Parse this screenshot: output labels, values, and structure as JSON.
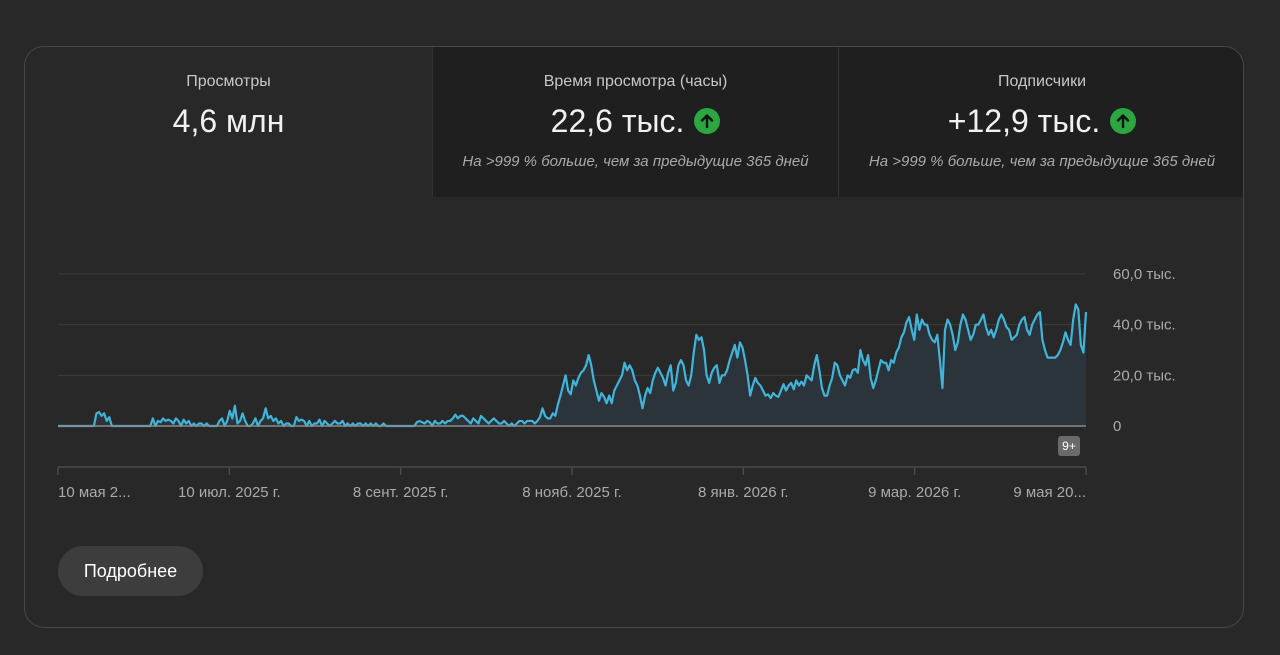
{
  "tabs": [
    {
      "label": "Просмотры",
      "value": "4,6 млн",
      "note": "",
      "trend": "none"
    },
    {
      "label": "Время просмотра (часы)",
      "value": "22,6 тыс.",
      "note": "На >999 % больше, чем за предыдущие 365 дней",
      "trend": "up"
    },
    {
      "label": "Подписчики",
      "value": "+12,9 тыс.",
      "note": "На >999 % больше, чем за предыдущие 365 дней",
      "trend": "up"
    }
  ],
  "colors": {
    "accent_line": "#41b4d9",
    "area_fill": "#2a343a",
    "trend_up": "#2ba640",
    "grid": "#3c3c3c",
    "baseline": "#8a8a8a"
  },
  "chart_data": {
    "type": "area",
    "y_ticks": [
      "0",
      "20,0 тыс.",
      "40,0 тыс.",
      "60,0 тыс."
    ],
    "ylim": [
      0,
      60000
    ],
    "x_tick_labels": [
      "10 мая 2...",
      "10 июл. 2025 г.",
      "8 сент. 2025 г.",
      "8 нояб. 2025 г.",
      "8 янв. 2026 г.",
      "9 мар. 2026 г.",
      "9 мая 20..."
    ],
    "x_range": [
      "2025-05-10",
      "2026-05-09"
    ],
    "annotation": "9+",
    "grid": true,
    "series": [
      {
        "values": [
          0,
          0,
          0,
          0,
          0,
          0,
          0,
          0,
          0,
          0,
          0,
          0,
          0,
          0,
          0,
          5000,
          5500,
          4000,
          5000,
          2000,
          3500,
          0,
          0,
          0,
          0,
          0,
          0,
          0,
          0,
          0,
          0,
          0,
          0,
          0,
          0,
          0,
          0,
          3000,
          0,
          2000,
          1500,
          3000,
          2000,
          2500,
          2000,
          1000,
          3000,
          2000,
          0,
          2500,
          1000,
          2000,
          0,
          1000,
          0,
          1000,
          1000,
          0,
          1000,
          0,
          0,
          0,
          0,
          2000,
          3000,
          0,
          2000,
          6000,
          3000,
          8000,
          1000,
          2000,
          5000,
          2000,
          0,
          0,
          1000,
          3000,
          0,
          2000,
          3000,
          7000,
          3000,
          4000,
          2000,
          3000,
          1000,
          2000,
          0,
          1000,
          1000,
          0,
          0,
          3500,
          2000,
          2500,
          2000,
          0,
          2000,
          0,
          1000,
          1000,
          2500,
          0,
          2000,
          1000,
          0,
          1000,
          2000,
          1000,
          1000,
          2000,
          0,
          1000,
          0,
          1000,
          0,
          1000,
          1000,
          0,
          1000,
          0,
          1000,
          0,
          1000,
          0,
          0,
          1000,
          0,
          0,
          0,
          0,
          0,
          0,
          0,
          0,
          0,
          0,
          0,
          0,
          1500,
          2000,
          1500,
          1000,
          2000,
          1500,
          0,
          2000,
          1000,
          1000,
          2000,
          1000,
          2000,
          2000,
          3000,
          4500,
          3000,
          4000,
          4000,
          3000,
          2000,
          1000,
          3000,
          2000,
          1000,
          4000,
          3000,
          2000,
          1000,
          2000,
          3000,
          2000,
          1000,
          1000,
          2000,
          1000,
          0,
          1000,
          0,
          1000,
          2000,
          2000,
          1000,
          2000,
          2000,
          2000,
          1000,
          2000,
          3500,
          7000,
          4000,
          3000,
          3000,
          5000,
          4000,
          8500,
          12000,
          16000,
          20000,
          14000,
          12500,
          18000,
          16000,
          19000,
          21000,
          22000,
          24000,
          28000,
          24000,
          18000,
          14000,
          10000,
          13000,
          11500,
          9000,
          12000,
          9000,
          14000,
          16000,
          18000,
          20000,
          25000,
          22000,
          24000,
          22000,
          18000,
          16000,
          12000,
          7000,
          12000,
          15000,
          13000,
          18000,
          21000,
          23000,
          21000,
          19000,
          16000,
          21000,
          24000,
          14000,
          17000,
          24000,
          26000,
          24000,
          18000,
          16000,
          20000,
          29000,
          36000,
          34000,
          35000,
          30000,
          20000,
          17000,
          21000,
          23000,
          24000,
          17000,
          20000,
          20000,
          22000,
          26000,
          29000,
          32000,
          27000,
          33000,
          31000,
          26000,
          20000,
          12000,
          16000,
          19000,
          17000,
          16000,
          14000,
          12000,
          12500,
          11000,
          13000,
          12000,
          11500,
          14000,
          16500,
          14000,
          16000,
          17000,
          14500,
          18000,
          16000,
          17500,
          16000,
          20000,
          19000,
          18000,
          24000,
          28000,
          22000,
          15000,
          12000,
          12000,
          16000,
          19000,
          25000,
          24000,
          20000,
          18000,
          16000,
          20000,
          19000,
          22000,
          22500,
          21000,
          30000,
          26000,
          24000,
          28000,
          19000,
          15000,
          18000,
          22000,
          26000,
          25000,
          25000,
          22000,
          26000,
          25000,
          29000,
          31000,
          35000,
          37000,
          41000,
          43000,
          38000,
          34000,
          44000,
          38000,
          42000,
          40000,
          40000,
          36000,
          34000,
          33000,
          36000,
          26000,
          15000,
          38000,
          42000,
          40000,
          36000,
          30000,
          33000,
          40000,
          44000,
          42000,
          38000,
          34000,
          36000,
          40000,
          40000,
          42000,
          44000,
          39000,
          36000,
          38000,
          35000,
          38000,
          42000,
          44000,
          42000,
          39000,
          38000,
          34000,
          35000,
          36000,
          40000,
          42000,
          43000,
          38000,
          36000,
          40000,
          42000,
          44000,
          45000,
          34000,
          30000,
          27000,
          27000,
          27000,
          27000,
          28000,
          30000,
          33000,
          37000,
          34000,
          32000,
          42000,
          48000,
          46000,
          32000,
          29000,
          45000
        ]
      }
    ]
  },
  "details_button": "Подробнее"
}
